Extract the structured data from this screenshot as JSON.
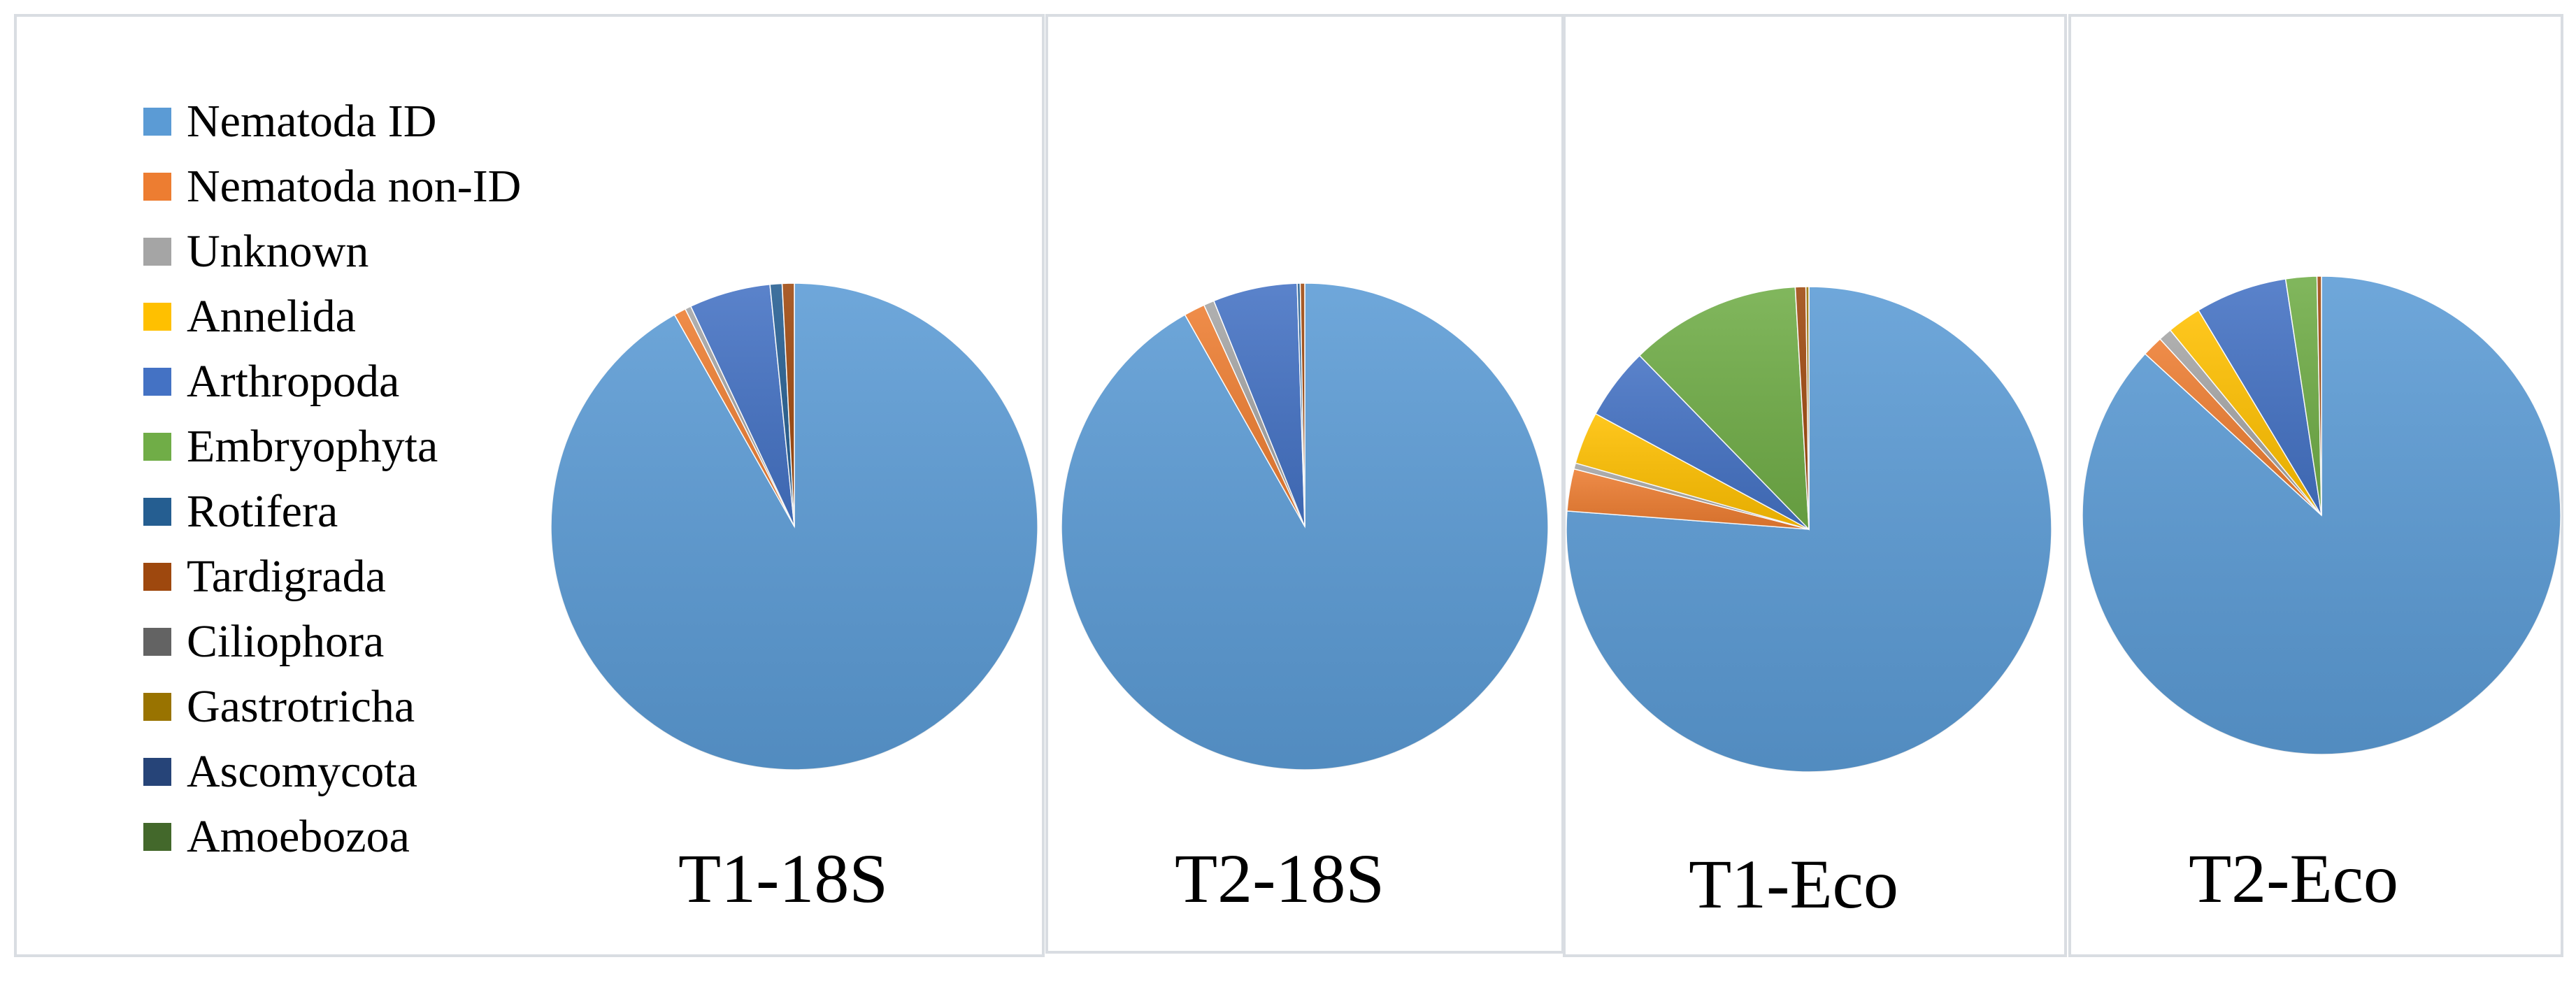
{
  "chart_data": [
    {
      "type": "pie",
      "title": "T1-18S",
      "categories": [
        "Nematoda ID",
        "Nematoda non-ID",
        "Unknown",
        "Annelida",
        "Arthropoda",
        "Embryophyta",
        "Rotifera",
        "Tardigrada",
        "Ciliophora",
        "Gastrotricha",
        "Ascomycota",
        "Amoebozoa"
      ],
      "values": [
        91.8,
        0.8,
        0.4,
        0.0,
        5.4,
        0.0,
        0.8,
        0.8,
        0.0,
        0.0,
        0.0,
        0.0
      ]
    },
    {
      "type": "pie",
      "title": "T2-18S",
      "categories": [
        "Nematoda ID",
        "Nematoda non-ID",
        "Unknown",
        "Annelida",
        "Arthropoda",
        "Embryophyta",
        "Rotifera",
        "Tardigrada",
        "Ciliophora",
        "Gastrotricha",
        "Ascomycota",
        "Amoebozoa"
      ],
      "values": [
        91.8,
        1.4,
        0.7,
        0.0,
        5.6,
        0.0,
        0.2,
        0.3,
        0.0,
        0.0,
        0.0,
        0.0
      ]
    },
    {
      "type": "pie",
      "title": "T1-Eco",
      "categories": [
        "Nematoda ID",
        "Nematoda non-ID",
        "Unknown",
        "Annelida",
        "Arthropoda",
        "Embryophyta",
        "Rotifera",
        "Tardigrada",
        "Ciliophora",
        "Gastrotricha",
        "Ascomycota",
        "Amoebozoa"
      ],
      "values": [
        76.2,
        2.8,
        0.4,
        3.5,
        4.8,
        11.4,
        0.0,
        0.7,
        0.0,
        0.2,
        0.0,
        0.0
      ]
    },
    {
      "type": "pie",
      "title": "T2-Eco",
      "categories": [
        "Nematoda ID",
        "Nematoda non-ID",
        "Unknown",
        "Annelida",
        "Arthropoda",
        "Embryophyta",
        "Rotifera",
        "Tardigrada",
        "Ciliophora",
        "Gastrotricha",
        "Ascomycota",
        "Amoebozoa"
      ],
      "values": [
        86.8,
        1.4,
        0.9,
        2.3,
        6.2,
        2.1,
        0.0,
        0.3,
        0.0,
        0.0,
        0.0,
        0.0
      ]
    }
  ],
  "legend": {
    "items": [
      {
        "label": "Nematoda ID",
        "color": "#5b9bd5"
      },
      {
        "label": "Nematoda non-ID",
        "color": "#ed7d31"
      },
      {
        "label": "Unknown",
        "color": "#a5a5a5"
      },
      {
        "label": "Annelida",
        "color": "#ffc000"
      },
      {
        "label": "Arthropoda",
        "color": "#4472c4"
      },
      {
        "label": "Embryophyta",
        "color": "#70ad47"
      },
      {
        "label": "Rotifera",
        "color": "#255e91"
      },
      {
        "label": "Tardigrada",
        "color": "#9e480e"
      },
      {
        "label": "Ciliophora",
        "color": "#636363"
      },
      {
        "label": "Gastrotricha",
        "color": "#997300"
      },
      {
        "label": "Ascomycota",
        "color": "#264478"
      },
      {
        "label": "Amoebozoa",
        "color": "#43682b"
      }
    ]
  }
}
